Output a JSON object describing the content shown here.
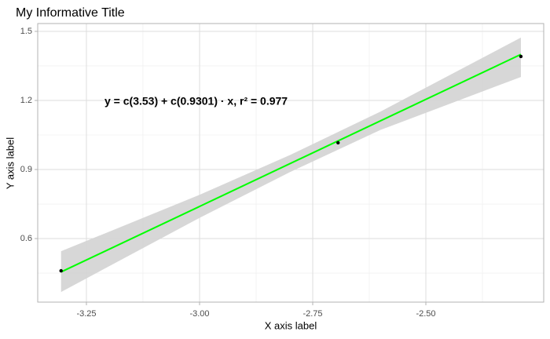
{
  "chart_data": {
    "type": "scatter",
    "title": "My Informative Title",
    "x_label": "X axis label",
    "y_label": "Y axis label",
    "annotation": "y = c(3.53) + c(0.9301) · x,  r² = 0.977",
    "x": [
      -3.306,
      -2.694,
      -2.29
    ],
    "series": [
      {
        "name": "points",
        "color": "#000000",
        "values": [
          0.46,
          1.016,
          1.391
        ]
      }
    ],
    "fit": {
      "color": "#00ff00",
      "x": [
        -3.306,
        -2.29
      ],
      "values": [
        0.455,
        1.4
      ]
    },
    "band": {
      "color": "#d3d3d3",
      "x": [
        -3.306,
        -3.0,
        -2.8,
        -2.6,
        -2.29
      ],
      "lower": [
        0.368,
        0.69,
        0.889,
        1.072,
        1.302
      ],
      "upper": [
        0.545,
        0.79,
        0.963,
        1.152,
        1.473
      ]
    },
    "xlim": [
      -3.3576,
      -2.2396
    ],
    "ylim": [
      0.324,
      1.534
    ],
    "xticks": [
      -3.25,
      {
        "value": -3.0,
        "label": "-3.00"
      },
      -2.75,
      {
        "value": -2.5,
        "label": "-2.50"
      }
    ],
    "yticks": [
      {
        "value": 0.6,
        "label": "0.6"
      },
      {
        "value": 0.9,
        "label": "0.9"
      },
      {
        "value": 1.2,
        "label": "1.2"
      },
      {
        "value": 1.5,
        "label": "1.5"
      }
    ],
    "x_minor_grid": [
      -3.125,
      -2.875,
      -2.625,
      -2.375
    ],
    "y_minor_grid": [
      0.45,
      0.75,
      1.05,
      1.35
    ],
    "grid": true
  }
}
